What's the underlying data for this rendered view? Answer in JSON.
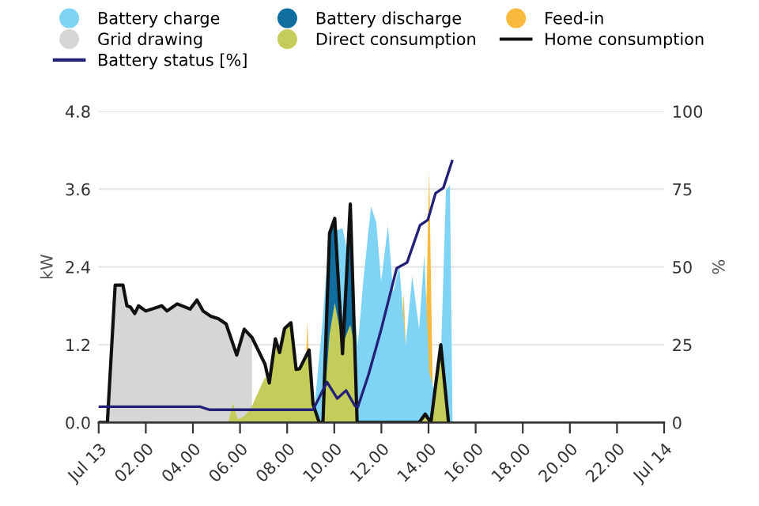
{
  "chart_data": {
    "type": "area",
    "xlabel": null,
    "ylabel": "kW",
    "y2label": "%",
    "xlim": [
      0,
      24
    ],
    "xticks": [
      {
        "value": 0,
        "label": "Jul 13"
      },
      {
        "value": 2,
        "label": "02.00"
      },
      {
        "value": 4,
        "label": "04.00"
      },
      {
        "value": 6,
        "label": "06.00"
      },
      {
        "value": 8,
        "label": "08.00"
      },
      {
        "value": 10,
        "label": "10.00"
      },
      {
        "value": 12,
        "label": "12.00"
      },
      {
        "value": 14,
        "label": "14.00"
      },
      {
        "value": 16,
        "label": "16.00"
      },
      {
        "value": 18,
        "label": "18.00"
      },
      {
        "value": 20,
        "label": "20.00"
      },
      {
        "value": 22,
        "label": "22.00"
      },
      {
        "value": 24,
        "label": "Jul 14"
      }
    ],
    "ylim": [
      0,
      4.8
    ],
    "yticks": [
      {
        "value": 0,
        "label": "0.0"
      },
      1.2,
      2.4,
      3.6,
      4.8
    ],
    "y2lim": [
      0,
      100
    ],
    "y2ticks": [
      0,
      25,
      50,
      75,
      100
    ],
    "grid": "y",
    "legend": "top",
    "marker": "none",
    "series": [
      {
        "name": "Battery charge",
        "color": "#7fd4f6",
        "x": [
          9.1,
          9.47,
          9.8,
          10.35,
          10.68,
          11.0,
          11.23,
          11.56,
          11.78,
          11.99,
          12.28,
          12.5,
          12.76,
          13.03,
          13.31,
          13.6,
          13.82,
          14.03,
          14.3,
          14.52,
          14.74,
          14.91,
          15.02
        ],
        "values": [
          0,
          1.43,
          2.92,
          3.0,
          2.43,
          1.19,
          2.18,
          3.33,
          3.09,
          2.18,
          3.04,
          2.01,
          2.43,
          1.19,
          2.26,
          1.44,
          2.59,
          0.78,
          0.4,
          0.94,
          3.58,
          3.66,
          0
        ]
      },
      {
        "name": "Battery discharge",
        "color": "#0f6e9f",
        "x": [
          9.52,
          9.7,
          9.8,
          10.02,
          10.35,
          10.68,
          10.97
        ],
        "values": [
          0,
          2.4,
          2.92,
          3.15,
          1.5,
          3.37,
          0
        ]
      },
      {
        "name": "Feed-in",
        "color": "#f8b93c",
        "x": [
          8.7,
          8.86,
          9.0,
          12.7,
          12.95,
          13.15,
          13.8,
          14.03,
          14.2
        ],
        "values": [
          0,
          1.56,
          0,
          0,
          2.0,
          0,
          0,
          3.9,
          0
        ]
      },
      {
        "name": "Grid drawing",
        "color": "#d6d6d6",
        "x": [
          0.37,
          0.7,
          1.03,
          1.2,
          1.35,
          1.53,
          1.69,
          2.0,
          2.68,
          2.9,
          3.33,
          3.88,
          4.17,
          4.43,
          4.76,
          5.09,
          5.41,
          5.86,
          6.18,
          6.51
        ],
        "values": [
          0,
          2.12,
          2.12,
          1.8,
          1.78,
          1.68,
          1.8,
          1.72,
          1.8,
          1.72,
          1.83,
          1.75,
          1.89,
          1.72,
          1.64,
          1.6,
          1.52,
          1.04,
          1.44,
          1.31
        ]
      },
      {
        "name": "Direct consumption",
        "color": "#c5cd5a",
        "x": [
          5.5,
          5.7,
          5.9,
          6.2,
          6.5,
          7.06,
          7.24,
          7.5,
          7.68,
          7.89,
          8.16,
          8.38,
          8.53,
          8.93,
          9.1,
          9.36,
          9.52,
          9.8,
          10.02,
          10.35,
          10.68,
          10.9,
          10.97,
          13.5,
          13.86,
          14.1,
          14.52,
          14.85
        ],
        "values": [
          0,
          0.3,
          0.05,
          0.1,
          0.25,
          0.7,
          0.61,
          1.29,
          1.08,
          1.45,
          1.54,
          0.82,
          0.83,
          1.12,
          0.28,
          0,
          0,
          1.36,
          1.85,
          1.2,
          1.51,
          1.1,
          0,
          0,
          0.13,
          0,
          1.2,
          0
        ]
      },
      {
        "name": "Home consumption",
        "type": "line",
        "color": "#111111",
        "x": [
          0,
          0.37,
          0.7,
          1.03,
          1.2,
          1.35,
          1.53,
          1.69,
          2.0,
          2.68,
          2.9,
          3.33,
          3.88,
          4.17,
          4.43,
          4.76,
          5.09,
          5.41,
          5.86,
          6.18,
          6.51,
          7.06,
          7.24,
          7.5,
          7.68,
          7.89,
          8.16,
          8.38,
          8.53,
          8.93,
          9.1,
          9.36,
          9.52,
          9.8,
          10.02,
          10.35,
          10.68,
          10.97,
          13.6,
          13.86,
          14.1,
          14.52,
          14.85
        ],
        "values": [
          0,
          0,
          2.12,
          2.12,
          1.8,
          1.78,
          1.68,
          1.8,
          1.72,
          1.8,
          1.72,
          1.83,
          1.75,
          1.89,
          1.72,
          1.64,
          1.6,
          1.52,
          1.04,
          1.44,
          1.31,
          0.9,
          0.61,
          1.29,
          1.08,
          1.45,
          1.54,
          0.82,
          0.83,
          1.12,
          0.28,
          0,
          0,
          2.92,
          3.15,
          1.06,
          3.37,
          0,
          0,
          0.13,
          0,
          1.2,
          0
        ]
      },
      {
        "name": "Battery status [%]",
        "type": "line",
        "axis": "y2",
        "color": "#232078",
        "x": [
          0,
          4.3,
          4.7,
          9.1,
          9.69,
          10.13,
          10.5,
          10.88,
          11.0,
          11.45,
          11.99,
          12.65,
          13.09,
          13.64,
          13.97,
          14.3,
          14.63,
          15.0
        ],
        "values": [
          5.1,
          5.1,
          4.1,
          4.1,
          13,
          7.7,
          10.3,
          5.3,
          5.0,
          15.3,
          29.9,
          49.6,
          51.4,
          63.4,
          65.1,
          73.7,
          75.4,
          84.0
        ]
      }
    ]
  }
}
